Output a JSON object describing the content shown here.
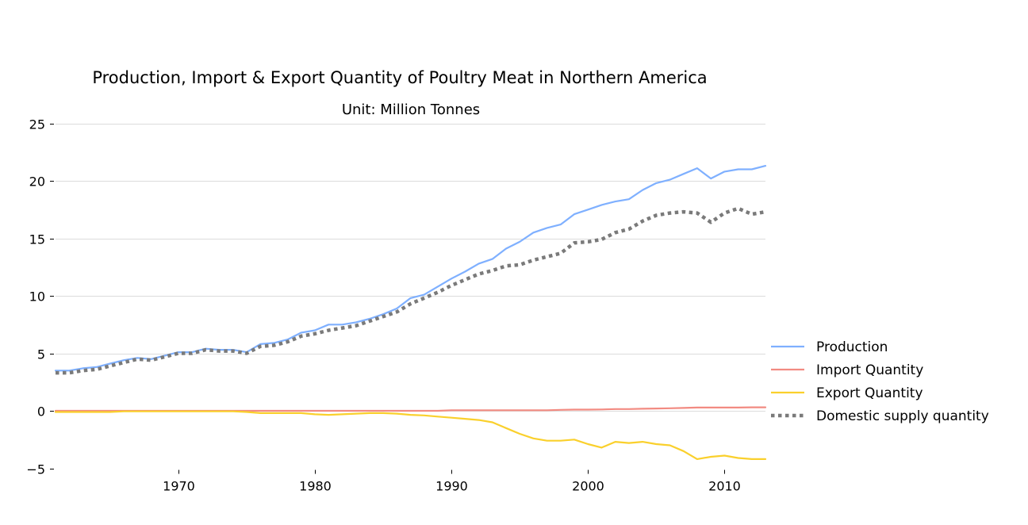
{
  "chart_data": {
    "type": "line",
    "title": "Production, Import & Export Quantity of Poultry Meat in Northern America",
    "subtitle": "Unit: Million Tonnes",
    "xlabel": "",
    "ylabel": "",
    "xlim": [
      1961,
      2013
    ],
    "ylim": [
      -5,
      25
    ],
    "yticks": [
      -5,
      0,
      5,
      10,
      15,
      20,
      25
    ],
    "ytick_labels": [
      "−5",
      "0",
      "5",
      "10",
      "15",
      "20",
      "25"
    ],
    "xticks": [
      1970,
      1980,
      1990,
      2000,
      2010
    ],
    "xtick_labels": [
      "1970",
      "1980",
      "1990",
      "2000",
      "2010"
    ],
    "grid": "horizontal",
    "legend_position": "right",
    "x": [
      1961,
      1962,
      1963,
      1964,
      1965,
      1966,
      1967,
      1968,
      1969,
      1970,
      1971,
      1972,
      1973,
      1974,
      1975,
      1976,
      1977,
      1978,
      1979,
      1980,
      1981,
      1982,
      1983,
      1984,
      1985,
      1986,
      1987,
      1988,
      1989,
      1990,
      1991,
      1992,
      1993,
      1994,
      1995,
      1996,
      1997,
      1998,
      1999,
      2000,
      2001,
      2002,
      2003,
      2004,
      2005,
      2006,
      2007,
      2008,
      2009,
      2010,
      2011,
      2012,
      2013
    ],
    "series": [
      {
        "name": "Production",
        "color": "#7fb0ff",
        "style": "solid",
        "values": [
          3.5,
          3.5,
          3.7,
          3.8,
          4.1,
          4.4,
          4.6,
          4.5,
          4.8,
          5.1,
          5.1,
          5.4,
          5.3,
          5.3,
          5.1,
          5.8,
          5.9,
          6.2,
          6.8,
          7.0,
          7.5,
          7.5,
          7.7,
          8.0,
          8.4,
          8.9,
          9.8,
          10.1,
          10.8,
          11.5,
          12.1,
          12.8,
          13.2,
          14.1,
          14.7,
          15.5,
          15.9,
          16.2,
          17.1,
          17.5,
          17.9,
          18.2,
          18.4,
          19.2,
          19.8,
          20.1,
          20.6,
          21.1,
          20.2,
          20.8,
          21.0,
          21.0,
          21.3
        ]
      },
      {
        "name": "Import Quantity",
        "color": "#f28b82",
        "style": "solid",
        "values": [
          0.0,
          0.0,
          0.0,
          0.0,
          0.0,
          0.0,
          0.0,
          0.0,
          0.0,
          0.0,
          0.0,
          0.0,
          0.0,
          0.0,
          0.0,
          0.0,
          0.0,
          0.0,
          0.0,
          0.0,
          0.0,
          0.0,
          0.0,
          0.0,
          0.0,
          0.0,
          0.0,
          0.0,
          0.0,
          0.05,
          0.05,
          0.05,
          0.05,
          0.05,
          0.05,
          0.05,
          0.05,
          0.08,
          0.1,
          0.1,
          0.12,
          0.15,
          0.15,
          0.18,
          0.2,
          0.22,
          0.25,
          0.28,
          0.28,
          0.28,
          0.28,
          0.3,
          0.3
        ]
      },
      {
        "name": "Export Quantity",
        "color": "#fad02c",
        "style": "solid",
        "values": [
          -0.1,
          -0.1,
          -0.1,
          -0.1,
          -0.1,
          -0.05,
          -0.05,
          -0.05,
          -0.05,
          -0.05,
          -0.05,
          -0.05,
          -0.05,
          -0.05,
          -0.1,
          -0.2,
          -0.2,
          -0.2,
          -0.2,
          -0.3,
          -0.35,
          -0.3,
          -0.25,
          -0.2,
          -0.2,
          -0.25,
          -0.35,
          -0.4,
          -0.5,
          -0.6,
          -0.7,
          -0.8,
          -1.0,
          -1.5,
          -2.0,
          -2.4,
          -2.6,
          -2.6,
          -2.5,
          -2.9,
          -3.2,
          -2.7,
          -2.8,
          -2.7,
          -2.9,
          -3.0,
          -3.5,
          -4.2,
          -4.0,
          -3.9,
          -4.1,
          -4.2,
          -4.2
        ]
      },
      {
        "name": "Domestic supply quantity",
        "color": "#7a7a7a",
        "style": "dotted",
        "values": [
          3.3,
          3.3,
          3.5,
          3.6,
          3.9,
          4.2,
          4.5,
          4.4,
          4.7,
          5.0,
          5.0,
          5.3,
          5.2,
          5.2,
          5.0,
          5.6,
          5.7,
          6.0,
          6.5,
          6.7,
          7.0,
          7.2,
          7.4,
          7.8,
          8.2,
          8.6,
          9.3,
          9.8,
          10.3,
          10.9,
          11.4,
          11.9,
          12.2,
          12.6,
          12.7,
          13.1,
          13.4,
          13.7,
          14.6,
          14.7,
          14.9,
          15.5,
          15.8,
          16.5,
          17.0,
          17.2,
          17.3,
          17.2,
          16.4,
          17.2,
          17.6,
          17.1,
          17.3
        ]
      }
    ]
  }
}
